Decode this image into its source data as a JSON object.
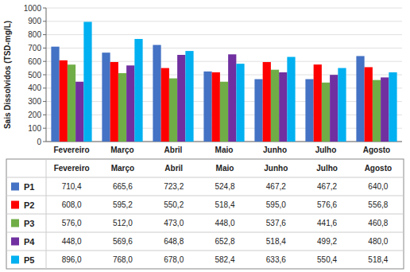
{
  "chart_data": {
    "type": "bar",
    "ylabel": "Sais Dissolvidos (TSD-mg/L)",
    "categories": [
      "Fevereiro",
      "Março",
      "Abril",
      "Maio",
      "Junho",
      "Julho",
      "Agosto"
    ],
    "series": [
      {
        "name": "P1",
        "color": "#4472C4",
        "values": [
          710.4,
          665.6,
          723.2,
          524.8,
          467.2,
          467.2,
          640.0
        ],
        "value_labels": [
          "710,4",
          "665,6",
          "723,2",
          "524,8",
          "467,2",
          "467,2",
          "640,0"
        ]
      },
      {
        "name": "P2",
        "color": "#FF0000",
        "values": [
          608.0,
          595.2,
          550.2,
          518.4,
          595.0,
          576.6,
          556.8
        ],
        "value_labels": [
          "608,0",
          "595,2",
          "550,2",
          "518,4",
          "595,0",
          "576,6",
          "556,8"
        ]
      },
      {
        "name": "P3",
        "color": "#70AD47",
        "values": [
          576.0,
          512.0,
          473.0,
          448.0,
          537.6,
          441.6,
          460.8
        ],
        "value_labels": [
          "576,0",
          "512,0",
          "473,0",
          "448,0",
          "537,6",
          "441,6",
          "460,8"
        ]
      },
      {
        "name": "P4",
        "color": "#7030A0",
        "values": [
          448.0,
          569.6,
          648.8,
          652.8,
          518.4,
          499.2,
          480.0
        ],
        "value_labels": [
          "448,0",
          "569,6",
          "648,8",
          "652,8",
          "518,4",
          "499,2",
          "480,0"
        ]
      },
      {
        "name": "P5",
        "color": "#00B0F0",
        "values": [
          896.0,
          768.0,
          678.0,
          582.4,
          633.6,
          550.4,
          518.4
        ],
        "value_labels": [
          "896,0",
          "768,0",
          "678,0",
          "582,4",
          "633,6",
          "550,4",
          "518,4"
        ]
      }
    ],
    "ylim": [
      0,
      1000
    ],
    "yticks": [
      0,
      100,
      200,
      300,
      400,
      500,
      600,
      700,
      800,
      900,
      1000
    ],
    "grid": true,
    "legend": "bottom"
  }
}
